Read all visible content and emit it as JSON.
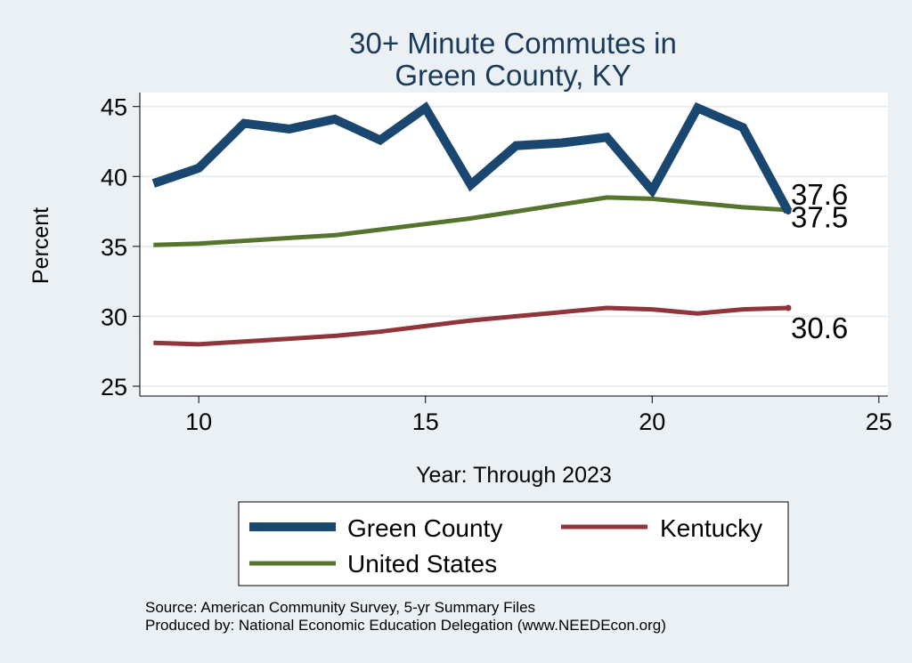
{
  "chart_data": {
    "type": "line",
    "title": [
      "30+ Minute Commutes in",
      "Green County, KY"
    ],
    "xlabel": "Year: Through 2023",
    "ylabel": "Percent",
    "xlim": [
      8.7,
      25.2
    ],
    "ylim": [
      24.3,
      46.0
    ],
    "xticks": [
      10,
      15,
      20,
      25
    ],
    "yticks": [
      25,
      30,
      35,
      40,
      45
    ],
    "x": [
      9,
      10,
      11,
      12,
      13,
      14,
      15,
      16,
      17,
      18,
      19,
      20,
      21,
      22,
      23
    ],
    "series": [
      {
        "name": "Green County",
        "color": "#1a476f",
        "values": [
          39.5,
          40.6,
          43.8,
          43.4,
          44.1,
          42.6,
          44.9,
          39.4,
          42.2,
          42.4,
          42.8,
          39.0,
          44.9,
          43.5,
          37.5
        ],
        "end_label": "37.5"
      },
      {
        "name": "Kentucky",
        "color": "#90353b",
        "values": [
          28.1,
          28.0,
          28.2,
          28.4,
          28.6,
          28.9,
          29.3,
          29.7,
          30.0,
          30.3,
          30.6,
          30.5,
          30.2,
          30.5,
          30.6
        ],
        "end_label": "30.6"
      },
      {
        "name": "United States",
        "color": "#55752f",
        "values": [
          35.1,
          35.2,
          35.4,
          35.6,
          35.8,
          36.2,
          36.6,
          37.0,
          37.5,
          38.0,
          38.5,
          38.4,
          38.1,
          37.8,
          37.6
        ],
        "end_label": "37.6"
      }
    ],
    "legend_position": "bottom"
  },
  "footer": {
    "source": "Source: American Community Survey, 5-yr Summary Files",
    "produced": "Produced by: National Economic Education Delegation (www.NEEDEcon.org)"
  }
}
